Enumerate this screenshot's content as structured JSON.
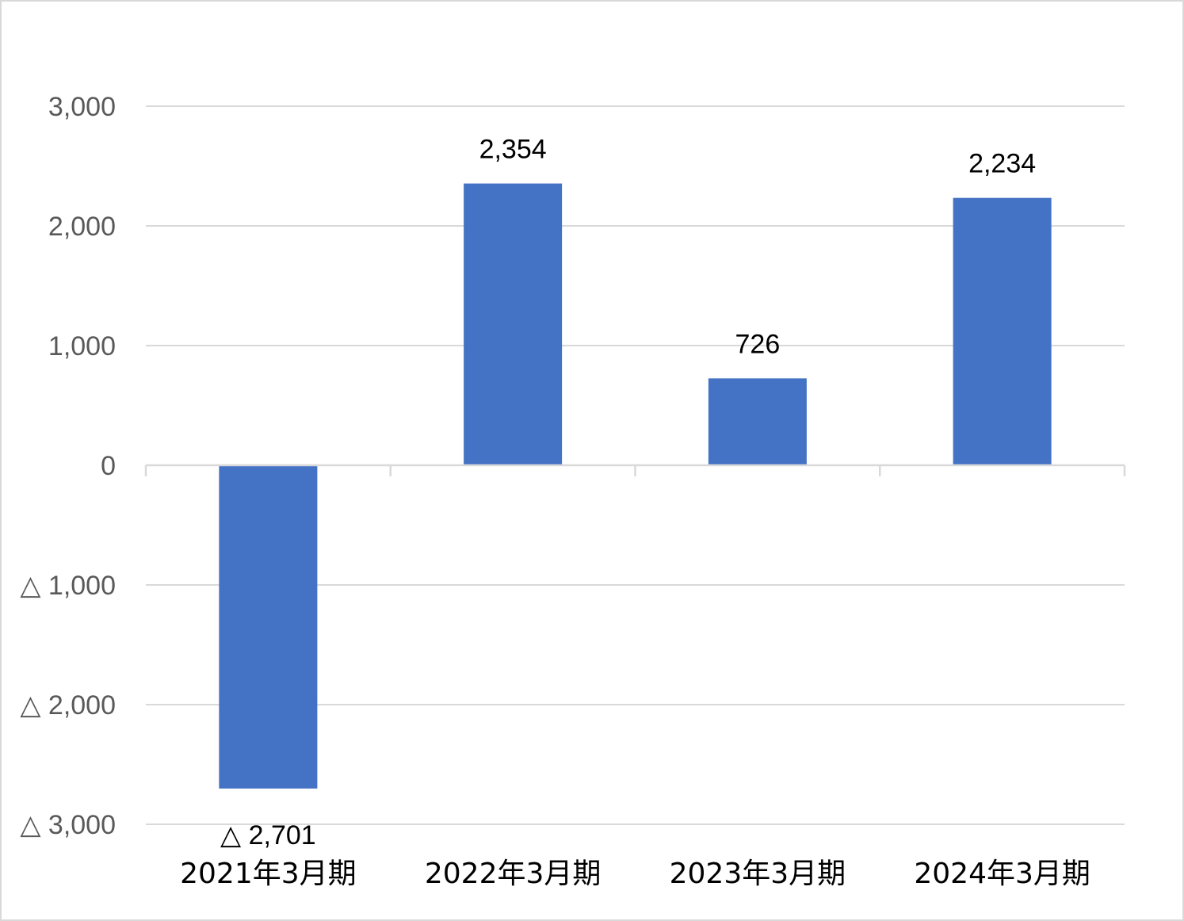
{
  "chart_data": {
    "type": "bar",
    "categories": [
      "2021年3月期",
      "2022年3月期",
      "2023年3月期",
      "2024年3月期"
    ],
    "values": [
      -2701,
      2354,
      726,
      2234
    ],
    "data_labels": [
      "△ 2,701",
      "2,354",
      "726",
      "2,234"
    ],
    "ylim": [
      -3000,
      3000
    ],
    "yticks": [
      {
        "value": 3000,
        "label": "3,000"
      },
      {
        "value": 2000,
        "label": "2,000"
      },
      {
        "value": 1000,
        "label": "1,000"
      },
      {
        "value": 0,
        "label": "0"
      },
      {
        "value": -1000,
        "label": "△ 1,000"
      },
      {
        "value": -2000,
        "label": "△ 2,000"
      },
      {
        "value": -3000,
        "label": "△ 3,000"
      }
    ],
    "grid": true,
    "legend": "none",
    "colors": {
      "bar": "#4472c4",
      "grid": "#d9d9d9",
      "axis": "#d9d9d9",
      "tick_text": "#595959"
    }
  }
}
